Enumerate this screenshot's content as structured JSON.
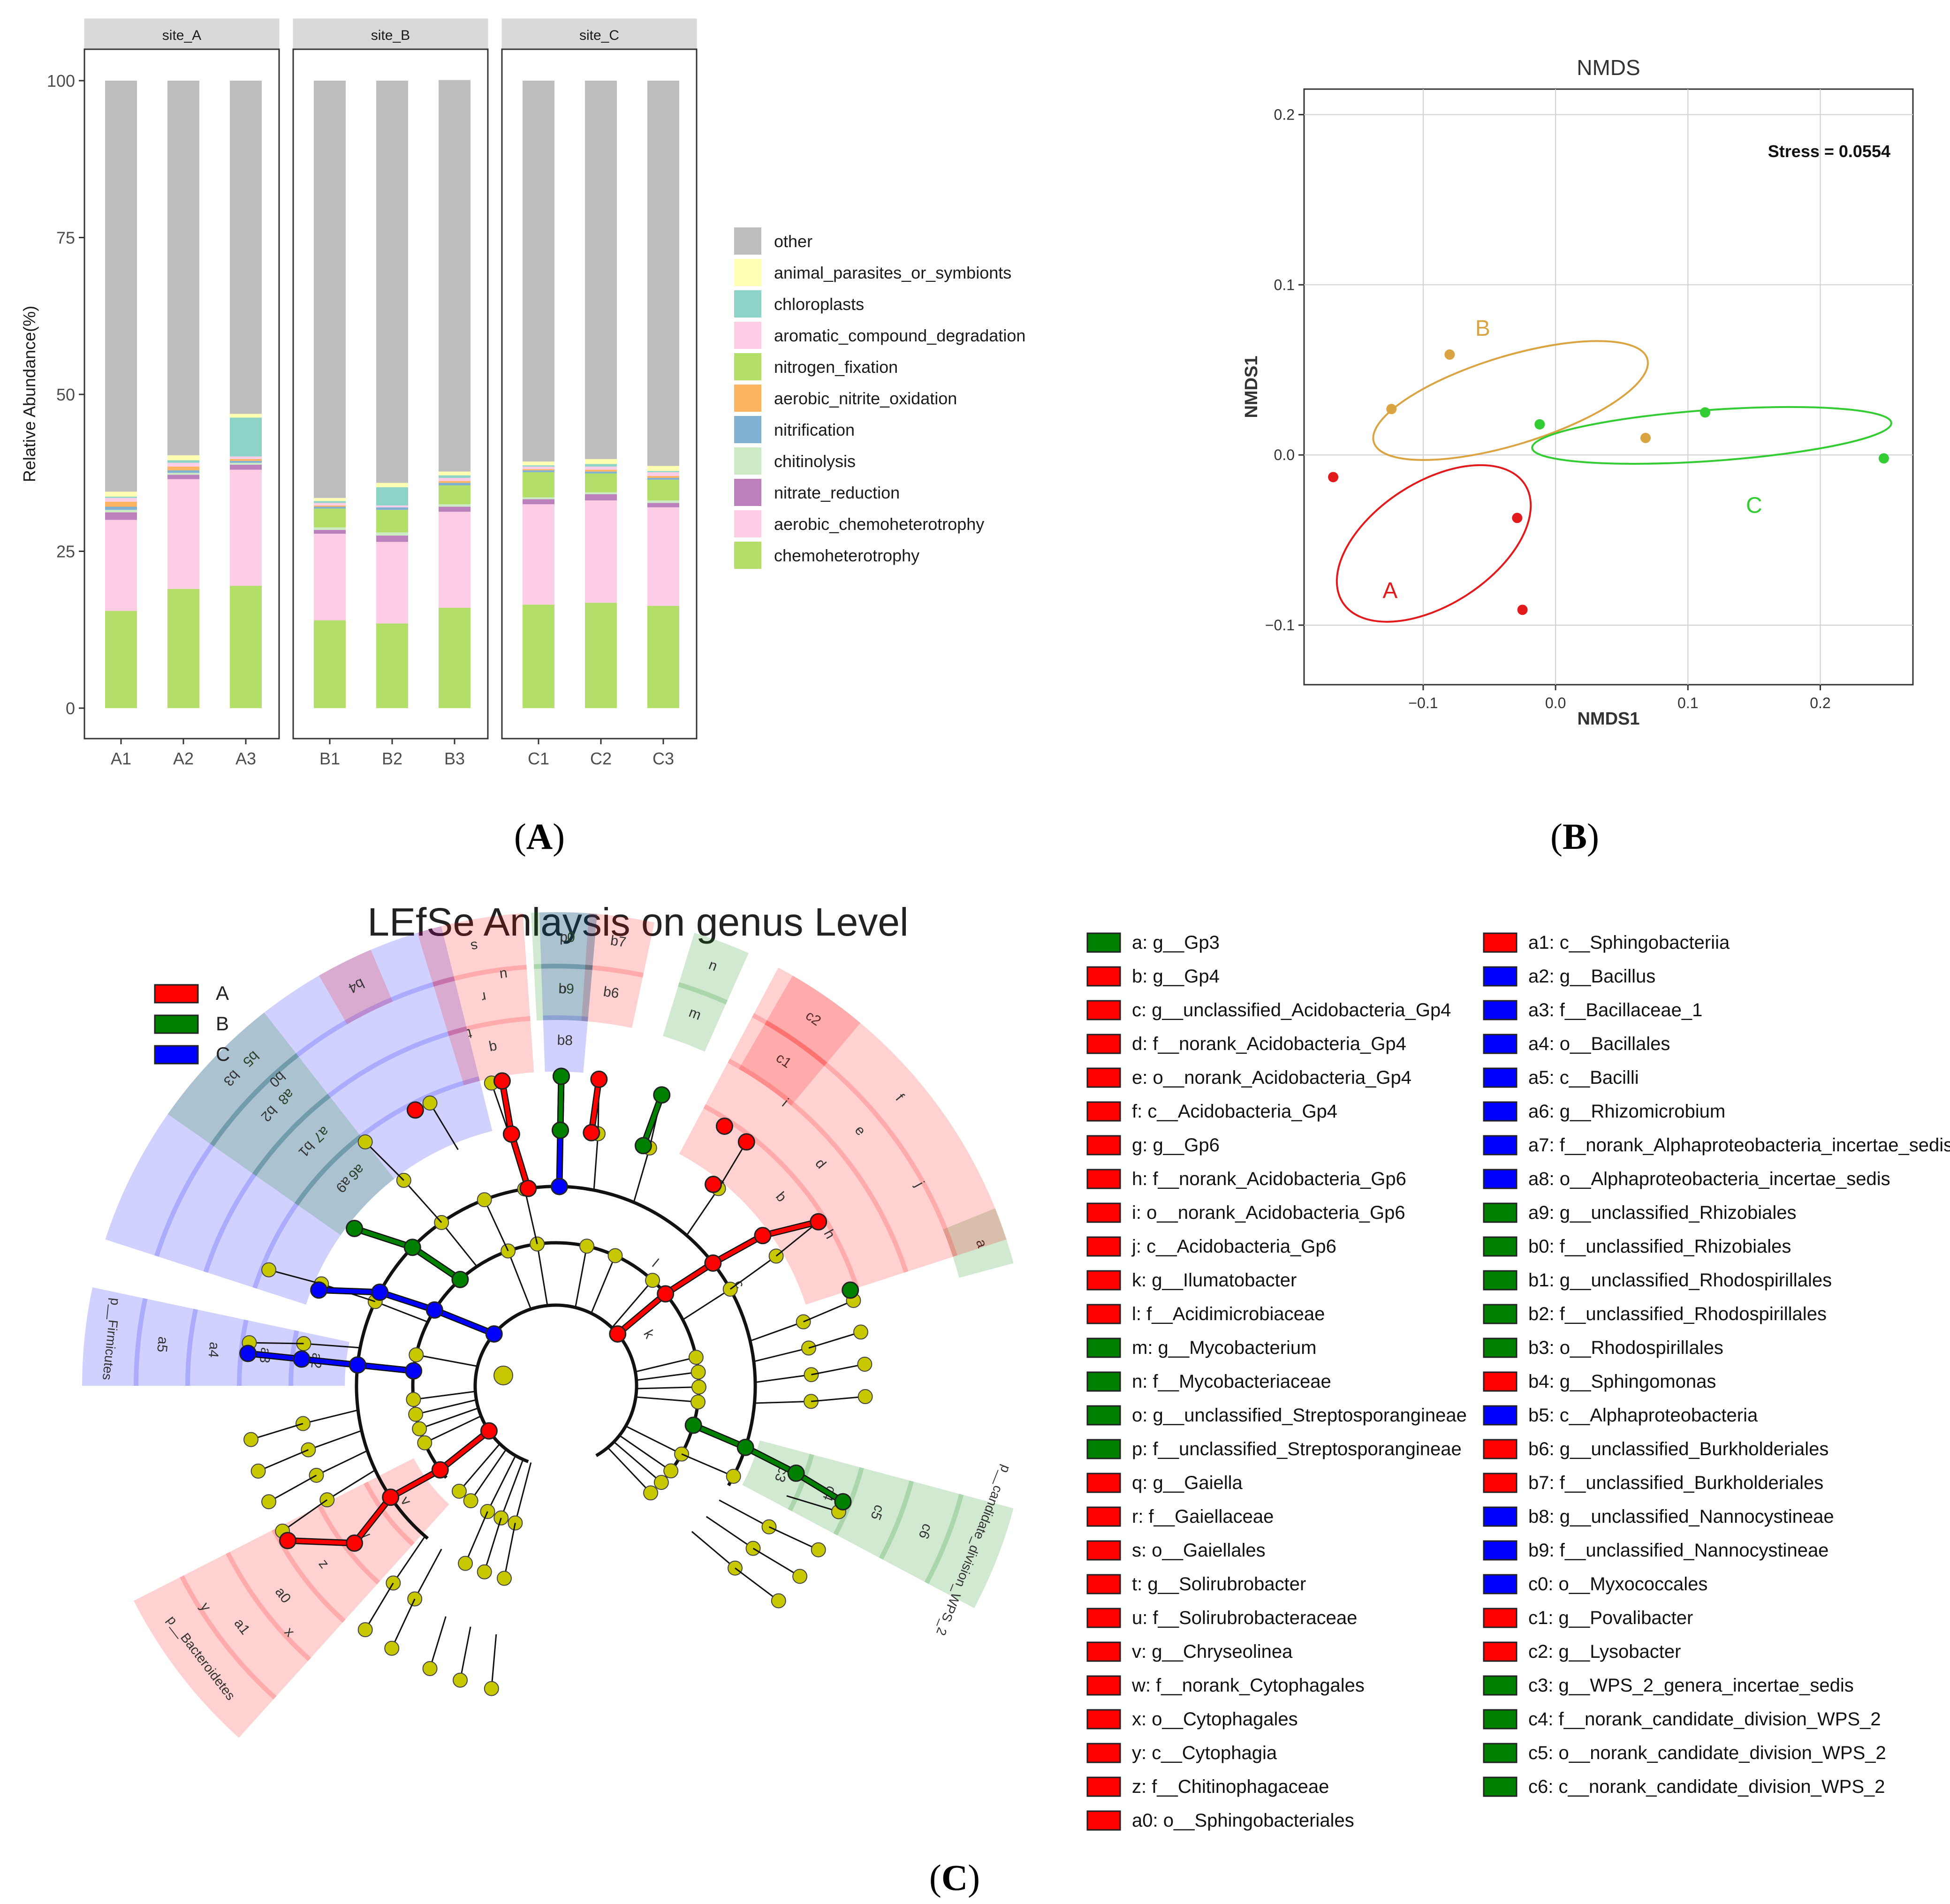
{
  "panels": {
    "A": {
      "label_open": "(",
      "label_letter": "A",
      "label_close": ")"
    },
    "B": {
      "label_open": "(",
      "label_letter": "B",
      "label_close": ")"
    },
    "C": {
      "label_open": "(",
      "label_letter": "C",
      "label_close": ")"
    }
  },
  "colors": {
    "other": "#bebebe",
    "animal_parasites_or_symbionts": "#ffffb3",
    "chloroplasts": "#8dd3c7",
    "aromatic_compound_degradation": "#fccde5",
    "nitrogen_fixation": "#b3de69",
    "aerobic_nitrite_oxidation": "#fdb462",
    "nitrification": "#80b1d3",
    "chitinolysis": "#ccebc5",
    "nitrate_reduction": "#bc80bd",
    "aerobic_chemoheterotrophy": "#fccde5",
    "chemoheterotrophy": "#b3de69",
    "groupA": "#e31a1c",
    "groupB": "#d9a441",
    "groupC": "#33cc33",
    "lefseA": "#ff0000",
    "lefseB": "#008000",
    "lefseC": "#0000ff",
    "node": "#c8c800"
  },
  "chart_data": [
    {
      "type": "bar",
      "stacked": true,
      "facets": [
        "site_A",
        "site_B",
        "site_C"
      ],
      "categories": [
        "A1",
        "A2",
        "A3",
        "B1",
        "B2",
        "B3",
        "C1",
        "C2",
        "C3"
      ],
      "ylabel": "Relative Abundance(%)",
      "ylim": [
        0,
        100
      ],
      "yticks": [
        "0",
        "25",
        "50",
        "75",
        "100"
      ],
      "legend_position": "right",
      "series": [
        {
          "name": "chemoheterotrophy",
          "values": [
            15.5,
            19.0,
            19.5,
            14.0,
            13.5,
            16.0,
            16.5,
            16.8,
            16.3
          ]
        },
        {
          "name": "aerobic_chemoheterotrophy",
          "values": [
            14.5,
            17.5,
            18.5,
            13.8,
            13.0,
            15.3,
            16.0,
            16.3,
            15.7
          ]
        },
        {
          "name": "nitrate_reduction",
          "values": [
            1.2,
            0.7,
            0.8,
            0.6,
            1.0,
            0.8,
            0.8,
            1.0,
            0.7
          ]
        },
        {
          "name": "chitinolysis",
          "values": [
            0.4,
            0.3,
            0.3,
            0.4,
            0.5,
            0.4,
            0.3,
            0.3,
            0.4
          ]
        },
        {
          "name": "nitrogen_fixation",
          "values": [
            0.0,
            0.0,
            0.0,
            3.0,
            3.6,
            3.0,
            4.0,
            3.0,
            3.3
          ]
        },
        {
          "name": "nitrification",
          "values": [
            0.5,
            0.4,
            0.3,
            0.3,
            0.4,
            0.4,
            0.3,
            0.3,
            0.3
          ]
        },
        {
          "name": "aerobic_nitrite_oxidation",
          "values": [
            0.8,
            0.6,
            0.3,
            0.2,
            0.0,
            0.3,
            0.2,
            0.3,
            0.3
          ]
        },
        {
          "name": "aromatic_compound_degradation",
          "values": [
            0.6,
            0.6,
            0.4,
            0.4,
            0.3,
            0.5,
            0.4,
            0.5,
            0.6
          ]
        },
        {
          "name": "chloroplasts",
          "values": [
            0.2,
            0.4,
            6.2,
            0.3,
            2.9,
            0.4,
            0.2,
            0.4,
            0.2
          ]
        },
        {
          "name": "animal_parasites_or_symbionts",
          "values": [
            0.8,
            0.8,
            0.6,
            0.5,
            0.7,
            0.6,
            0.6,
            0.8,
            0.8
          ]
        },
        {
          "name": "other",
          "values": [
            65.5,
            59.7,
            53.1,
            66.5,
            64.1,
            62.4,
            60.7,
            60.3,
            61.4
          ]
        }
      ],
      "legend_order": [
        "other",
        "animal_parasites_or_symbionts",
        "chloroplasts",
        "aromatic_compound_degradation",
        "nitrogen_fixation",
        "aerobic_nitrite_oxidation",
        "nitrification",
        "chitinolysis",
        "nitrate_reduction",
        "aerobic_chemoheterotrophy",
        "chemoheterotrophy"
      ]
    },
    {
      "type": "scatter",
      "title": "NMDS",
      "xlabel": "NMDS1",
      "ylabel": "NMDS1",
      "xlim": [
        -0.19,
        0.27
      ],
      "ylim": [
        -0.135,
        0.215
      ],
      "xticks": [
        -0.1,
        0.0,
        0.1,
        0.2
      ],
      "xtick_labels": [
        "−0.1",
        "0.0",
        "0.1",
        "0.2"
      ],
      "yticks": [
        -0.1,
        0.0,
        0.1,
        0.2
      ],
      "ytick_labels": [
        "−0.1",
        "0.0",
        "0.1",
        "0.2"
      ],
      "stress": "Stress = 0.0554",
      "groups": [
        {
          "name": "A",
          "points": [
            [
              -0.168,
              -0.013
            ],
            [
              -0.029,
              -0.037
            ],
            [
              -0.025,
              -0.091
            ]
          ],
          "ellipse": {
            "cx": -0.092,
            "cy": -0.052,
            "rx": 0.082,
            "ry": 0.036,
            "angle": -33
          },
          "label_at": [
            -0.125,
            -0.084
          ]
        },
        {
          "name": "B",
          "points": [
            [
              -0.08,
              0.059
            ],
            [
              -0.124,
              0.027
            ],
            [
              0.068,
              0.01
            ]
          ],
          "ellipse": {
            "cx": -0.034,
            "cy": 0.032,
            "rx": 0.108,
            "ry": 0.026,
            "angle": -17
          },
          "label_at": [
            -0.055,
            0.07
          ]
        },
        {
          "name": "C",
          "points": [
            [
              -0.012,
              0.018
            ],
            [
              0.113,
              0.025
            ],
            [
              0.248,
              -0.002
            ]
          ],
          "ellipse": {
            "cx": 0.118,
            "cy": 0.0115,
            "rx": 0.136,
            "ry": 0.015,
            "angle": -4
          },
          "label_at": [
            0.15,
            -0.034
          ]
        }
      ]
    },
    {
      "type": "cladogram",
      "title": "LEfSe Anlaysis on genus Level",
      "groups": [
        {
          "name": "A"
        },
        {
          "name": "B"
        },
        {
          "name": "C"
        }
      ],
      "clades": [
        {
          "group": "A",
          "a1": 207,
          "a2": 228,
          "labels": [
            "p__Bacteroidetes",
            "a1",
            "a0",
            "z",
            "w",
            "v"
          ],
          "labels2": [
            "y",
            "x"
          ]
        },
        {
          "group": "C",
          "a1": 168,
          "a2": 180,
          "labels": [
            "p__Firmicutes",
            "a5",
            "a4",
            "a3",
            "a2"
          ],
          "labels2": []
        },
        {
          "group": "C",
          "a1": 104,
          "a2": 162,
          "labels": [
            "b5",
            "a8",
            "a7",
            "a6"
          ],
          "labels2": []
        },
        {
          "group": "B",
          "a1": 128,
          "a2": 145,
          "labels": [
            "b3",
            "b2",
            "b1",
            "a9"
          ],
          "labels2": [
            "b0"
          ]
        },
        {
          "group": "A",
          "a1": 113,
          "a2": 120,
          "labels": [
            "b4"
          ],
          "labels2": []
        },
        {
          "group": "A",
          "a1": 78,
          "a2": 86,
          "labels": [
            "b7",
            "b6"
          ],
          "labels2": []
        },
        {
          "group": "C",
          "a1": 85,
          "a2": 92,
          "labels": [
            "c0",
            "b9",
            "b8"
          ],
          "labels2": []
        },
        {
          "group": "A",
          "a1": 50,
          "a2": 60,
          "labels": [
            "c2",
            "c1"
          ],
          "labels2": []
        },
        {
          "group": "B",
          "a1": -28,
          "a2": -15,
          "labels": [
            "p__candidate_division_WPS_2",
            "c6",
            "c5",
            "c4",
            "c3"
          ],
          "labels2": []
        },
        {
          "group": "B",
          "a1": 15,
          "a2": 22,
          "labels": [
            "a"
          ],
          "labels2": []
        },
        {
          "group": "A",
          "a1": 18,
          "a2": 62,
          "labels": [
            "f",
            "e",
            "d",
            "b"
          ],
          "labels2": [
            "j",
            "i",
            "h",
            "g",
            "c",
            "l",
            "k"
          ]
        },
        {
          "group": "B",
          "a1": 66,
          "a2": 73,
          "labels": [
            "n",
            "m"
          ],
          "labels2": []
        },
        {
          "group": "B",
          "a1": 85,
          "a2": 93,
          "labels": [
            "p",
            "o"
          ],
          "labels2": []
        },
        {
          "group": "A",
          "a1": 94,
          "a2": 107,
          "labels": [
            "s",
            "r",
            "q"
          ],
          "labels2": [
            "u",
            "t"
          ]
        }
      ],
      "legend_col1": [
        {
          "group": "B",
          "text": "a: g__Gp3"
        },
        {
          "group": "A",
          "text": "b: g__Gp4"
        },
        {
          "group": "A",
          "text": "c: g__unclassified_Acidobacteria_Gp4"
        },
        {
          "group": "A",
          "text": "d: f__norank_Acidobacteria_Gp4"
        },
        {
          "group": "A",
          "text": "e: o__norank_Acidobacteria_Gp4"
        },
        {
          "group": "A",
          "text": "f: c__Acidobacteria_Gp4"
        },
        {
          "group": "A",
          "text": "g: g__Gp6"
        },
        {
          "group": "A",
          "text": "h: f__norank_Acidobacteria_Gp6"
        },
        {
          "group": "A",
          "text": "i: o__norank_Acidobacteria_Gp6"
        },
        {
          "group": "A",
          "text": "j: c__Acidobacteria_Gp6"
        },
        {
          "group": "A",
          "text": "k: g__Ilumatobacter"
        },
        {
          "group": "A",
          "text": "l: f__Acidimicrobiaceae"
        },
        {
          "group": "B",
          "text": "m: g__Mycobacterium"
        },
        {
          "group": "B",
          "text": "n: f__Mycobacteriaceae"
        },
        {
          "group": "B",
          "text": "o: g__unclassified_Streptosporangineae"
        },
        {
          "group": "B",
          "text": "p: f__unclassified_Streptosporangineae"
        },
        {
          "group": "A",
          "text": "q: g__Gaiella"
        },
        {
          "group": "A",
          "text": "r: f__Gaiellaceae"
        },
        {
          "group": "A",
          "text": "s: o__Gaiellales"
        },
        {
          "group": "A",
          "text": "t: g__Solirubrobacter"
        },
        {
          "group": "A",
          "text": "u: f__Solirubrobacteraceae"
        },
        {
          "group": "A",
          "text": "v: g__Chryseolinea"
        },
        {
          "group": "A",
          "text": "w: f__norank_Cytophagales"
        },
        {
          "group": "A",
          "text": "x: o__Cytophagales"
        },
        {
          "group": "A",
          "text": "y: c__Cytophagia"
        },
        {
          "group": "A",
          "text": "z: f__Chitinophagaceae"
        },
        {
          "group": "A",
          "text": "a0: o__Sphingobacteriales"
        }
      ],
      "legend_col2": [
        {
          "group": "A",
          "text": "a1: c__Sphingobacteriia"
        },
        {
          "group": "C",
          "text": "a2: g__Bacillus"
        },
        {
          "group": "C",
          "text": "a3: f__Bacillaceae_1"
        },
        {
          "group": "C",
          "text": "a4: o__Bacillales"
        },
        {
          "group": "C",
          "text": "a5: c__Bacilli"
        },
        {
          "group": "C",
          "text": "a6: g__Rhizomicrobium"
        },
        {
          "group": "C",
          "text": "a7: f__norank_Alphaproteobacteria_incertae_sedis"
        },
        {
          "group": "C",
          "text": "a8: o__Alphaproteobacteria_incertae_sedis"
        },
        {
          "group": "B",
          "text": "a9: g__unclassified_Rhizobiales"
        },
        {
          "group": "B",
          "text": "b0: f__unclassified_Rhizobiales"
        },
        {
          "group": "B",
          "text": "b1: g__unclassified_Rhodospirillales"
        },
        {
          "group": "B",
          "text": "b2: f__unclassified_Rhodospirillales"
        },
        {
          "group": "B",
          "text": "b3: o__Rhodospirillales"
        },
        {
          "group": "A",
          "text": "b4: g__Sphingomonas"
        },
        {
          "group": "C",
          "text": "b5: c__Alphaproteobacteria"
        },
        {
          "group": "A",
          "text": "b6: g__unclassified_Burkholderiales"
        },
        {
          "group": "A",
          "text": "b7: f__unclassified_Burkholderiales"
        },
        {
          "group": "C",
          "text": "b8: g__unclassified_Nannocystineae"
        },
        {
          "group": "C",
          "text": "b9: f__unclassified_Nannocystineae"
        },
        {
          "group": "C",
          "text": "c0: o__Myxococcales"
        },
        {
          "group": "A",
          "text": "c1: g__Povalibacter"
        },
        {
          "group": "A",
          "text": "c2: g__Lysobacter"
        },
        {
          "group": "B",
          "text": "c3: g__WPS_2_genera_incertae_sedis"
        },
        {
          "group": "B",
          "text": "c4: f__norank_candidate_division_WPS_2"
        },
        {
          "group": "B",
          "text": "c5: o__norank_candidate_division_WPS_2"
        },
        {
          "group": "B",
          "text": "c6: c__norank_candidate_division_WPS_2"
        }
      ],
      "biomarkers": [
        {
          "group": "A",
          "angle": 210,
          "depth": 4
        },
        {
          "group": "A",
          "angle": 218,
          "depth": 3
        },
        {
          "group": "A",
          "angle": 214,
          "depth": 2
        },
        {
          "group": "A",
          "angle": 216,
          "depth": 1
        },
        {
          "group": "A",
          "angle": 214,
          "depth": 0
        },
        {
          "group": "C",
          "angle": 174,
          "depth": 4
        },
        {
          "group": "C",
          "angle": 174,
          "depth": 3
        },
        {
          "group": "C",
          "angle": 174,
          "depth": 2
        },
        {
          "group": "C",
          "angle": 174,
          "depth": 1
        },
        {
          "group": "C",
          "angle": 158,
          "depth": 3
        },
        {
          "group": "C",
          "angle": 152,
          "depth": 2
        },
        {
          "group": "C",
          "angle": 148,
          "depth": 1
        },
        {
          "group": "C",
          "angle": 140,
          "depth": 0
        },
        {
          "group": "B",
          "angle": 142,
          "depth": 3
        },
        {
          "group": "B",
          "angle": 136,
          "depth": 2
        },
        {
          "group": "B",
          "angle": 132,
          "depth": 1
        },
        {
          "group": "A",
          "angle": 117,
          "depth": 4
        },
        {
          "group": "A",
          "angle": 82,
          "depth": 4
        },
        {
          "group": "A",
          "angle": 82,
          "depth": 3
        },
        {
          "group": "C",
          "angle": 89,
          "depth": 4
        },
        {
          "group": "C",
          "angle": 89,
          "depth": 3
        },
        {
          "group": "C",
          "angle": 89,
          "depth": 2
        },
        {
          "group": "A",
          "angle": 57,
          "depth": 4
        },
        {
          "group": "A",
          "angle": 52,
          "depth": 4
        },
        {
          "group": "B",
          "angle": -22,
          "depth": 4
        },
        {
          "group": "B",
          "angle": -20,
          "depth": 3
        },
        {
          "group": "B",
          "angle": -18,
          "depth": 2
        },
        {
          "group": "B",
          "angle": -16,
          "depth": 1
        },
        {
          "group": "B",
          "angle": 18,
          "depth": 4
        },
        {
          "group": "A",
          "angle": 32,
          "depth": 4
        },
        {
          "group": "A",
          "angle": 36,
          "depth": 3
        },
        {
          "group": "A",
          "angle": 38,
          "depth": 2
        },
        {
          "group": "A",
          "angle": 40,
          "depth": 1
        },
        {
          "group": "A",
          "angle": 40,
          "depth": 0
        },
        {
          "group": "A",
          "angle": 52,
          "depth": 3
        },
        {
          "group": "B",
          "angle": 70,
          "depth": 4
        },
        {
          "group": "B",
          "angle": 70,
          "depth": 3
        },
        {
          "group": "B",
          "angle": 89,
          "depth": 4
        },
        {
          "group": "B",
          "angle": 89,
          "depth": 3
        },
        {
          "group": "A",
          "angle": 100,
          "depth": 4
        },
        {
          "group": "A",
          "angle": 100,
          "depth": 3
        },
        {
          "group": "A",
          "angle": 98,
          "depth": 2
        }
      ]
    }
  ]
}
